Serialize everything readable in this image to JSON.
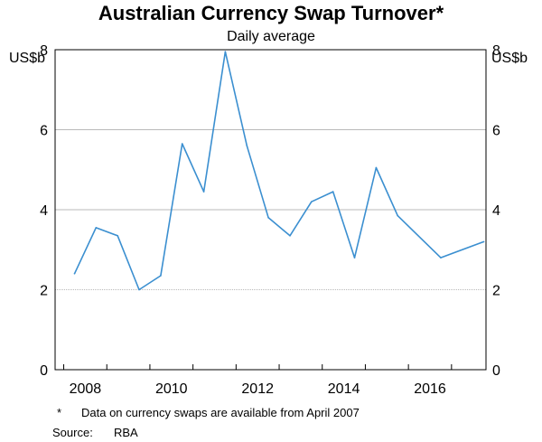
{
  "chart_data": {
    "type": "line",
    "title": "Australian Currency Swap Turnover*",
    "subtitle": "Daily average",
    "ylabel_left": "US$b",
    "ylabel_right": "US$b",
    "ylim": [
      0,
      8
    ],
    "yticks": [
      0,
      2,
      4,
      6,
      8
    ],
    "xlim": [
      2006.8,
      2016.8
    ],
    "xticks": [
      2008,
      2010,
      2012,
      2014,
      2016
    ],
    "grid": true,
    "series": [
      {
        "color": "#3b8fd0",
        "x": [
          2007.25,
          2007.75,
          2008.25,
          2008.75,
          2009.25,
          2009.75,
          2010.25,
          2010.75,
          2011.25,
          2011.75,
          2012.25,
          2012.75,
          2013.25,
          2013.75,
          2014.25,
          2014.75,
          2015.75,
          2016.75
        ],
        "values": [
          2.4,
          3.55,
          3.35,
          2.0,
          2.35,
          5.65,
          4.45,
          7.95,
          5.6,
          3.8,
          3.35,
          4.2,
          4.45,
          2.8,
          5.05,
          3.85,
          2.8,
          3.2
        ]
      }
    ]
  },
  "footnote": {
    "marker": "*",
    "text": "Data on currency swaps are available from April 2007"
  },
  "source": {
    "label": "Source:",
    "text": "RBA"
  }
}
